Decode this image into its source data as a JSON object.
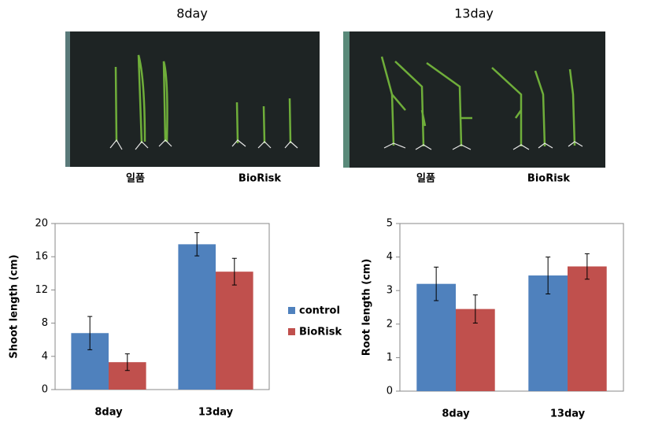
{
  "photos": [
    {
      "title": "8day",
      "labels": [
        "일품",
        "BioRisk"
      ]
    },
    {
      "title": "13day",
      "labels": [
        "일품",
        "BioRisk"
      ]
    }
  ],
  "chart_data": [
    {
      "type": "bar",
      "y_label": "Shoot length (cm)",
      "categories": [
        "8day",
        "13day"
      ],
      "series": [
        {
          "name": "control",
          "color": "#4f81bd",
          "values": [
            6.8,
            17.5
          ],
          "errors": [
            2.0,
            1.4
          ]
        },
        {
          "name": "BioRisk",
          "color": "#c0504d",
          "values": [
            3.3,
            14.2
          ],
          "errors": [
            1.0,
            1.6
          ]
        }
      ],
      "ylim": [
        0,
        20
      ],
      "yticks": [
        0,
        4,
        8,
        12,
        16,
        20
      ]
    },
    {
      "type": "bar",
      "y_label": "Root length (cm)",
      "categories": [
        "8day",
        "13day"
      ],
      "series": [
        {
          "color": "#4f81bd",
          "values": [
            3.2,
            3.45
          ],
          "errors": [
            0.5,
            0.55
          ]
        },
        {
          "color": "#c0504d",
          "values": [
            2.45,
            3.72
          ],
          "errors": [
            0.42,
            0.38
          ]
        }
      ],
      "ylim": [
        0,
        5
      ],
      "yticks": [
        0,
        1,
        2,
        3,
        4,
        5
      ]
    }
  ]
}
